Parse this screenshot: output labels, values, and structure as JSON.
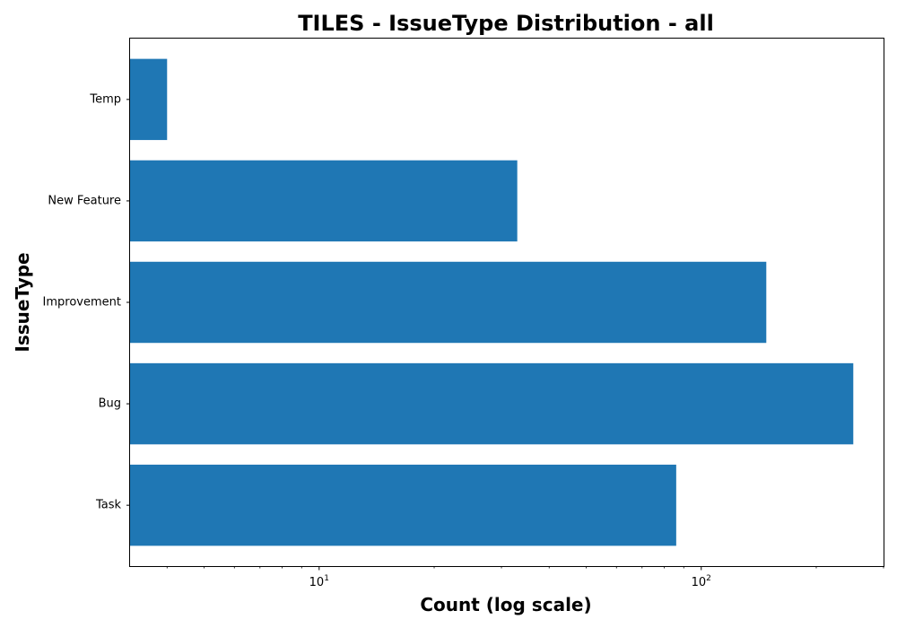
{
  "chart_data": {
    "type": "bar",
    "orientation": "horizontal",
    "title": "TILES - IssueType Distribution - all",
    "xlabel": "Count (log scale)",
    "ylabel": "IssueType",
    "x_scale": "log",
    "xlim": [
      3.2,
      300
    ],
    "categories": [
      "Task",
      "Bug",
      "Improvement",
      "New Feature",
      "Temp"
    ],
    "values": [
      86,
      250,
      148,
      33,
      4
    ],
    "x_ticks": [
      {
        "value": 10,
        "base": "10",
        "exp": "1"
      },
      {
        "value": 100,
        "base": "10",
        "exp": "2"
      }
    ],
    "bar_color": "#1f77b4",
    "grid": false,
    "legend": "none"
  }
}
